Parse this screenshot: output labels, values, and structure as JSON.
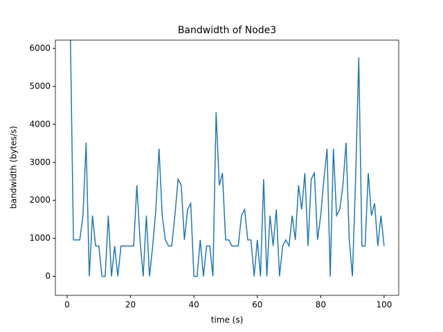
{
  "chart_data": {
    "type": "line",
    "title": "Bandwidth of Node3",
    "x_label": "time (s)",
    "y_label": "bandwidth (bytes/s)",
    "x": [
      1,
      2,
      3,
      4,
      5,
      6,
      7,
      8,
      9,
      10,
      11,
      12,
      13,
      14,
      15,
      16,
      17,
      18,
      19,
      20,
      21,
      22,
      23,
      24,
      25,
      26,
      27,
      28,
      29,
      30,
      31,
      32,
      33,
      34,
      35,
      36,
      37,
      38,
      39,
      40,
      41,
      42,
      43,
      44,
      45,
      46,
      47,
      48,
      49,
      50,
      51,
      52,
      53,
      54,
      55,
      56,
      57,
      58,
      59,
      60,
      61,
      62,
      63,
      64,
      65,
      66,
      67,
      68,
      69,
      70,
      71,
      72,
      73,
      74,
      75,
      76,
      77,
      78,
      79,
      80,
      81,
      82,
      83,
      84,
      85,
      86,
      87,
      88,
      89,
      90,
      91,
      92,
      93,
      94,
      95,
      96,
      97,
      98,
      99,
      100
    ],
    "series": [
      {
        "name": "Node3",
        "color": "#1f77b4",
        "values": [
          6500,
          960,
          960,
          960,
          1600,
          3520,
          0,
          1600,
          800,
          800,
          0,
          0,
          1600,
          0,
          800,
          0,
          800,
          800,
          800,
          800,
          800,
          2400,
          960,
          0,
          1600,
          0,
          800,
          1760,
          3360,
          1600,
          960,
          800,
          800,
          1600,
          2560,
          2400,
          960,
          1760,
          1920,
          0,
          0,
          960,
          0,
          800,
          800,
          0,
          4320,
          2400,
          2720,
          960,
          960,
          800,
          800,
          800,
          1600,
          1760,
          960,
          960,
          0,
          960,
          0,
          2560,
          0,
          1600,
          800,
          1760,
          0,
          800,
          960,
          800,
          1600,
          960,
          2400,
          1760,
          2720,
          800,
          2560,
          2720,
          960,
          1600,
          2560,
          3360,
          0,
          3360,
          1600,
          1760,
          2400,
          3520,
          960,
          0,
          2560,
          5760,
          800,
          800,
          2720,
          1600,
          1920,
          800,
          1600,
          800
        ]
      }
    ],
    "xlim": [
      -3.7,
      104.6
    ],
    "ylim": [
      -500,
      6220
    ],
    "xticks": [
      0,
      20,
      40,
      60,
      80,
      100
    ],
    "yticks": [
      0,
      1000,
      2000,
      3000,
      4000,
      5000,
      6000
    ]
  }
}
